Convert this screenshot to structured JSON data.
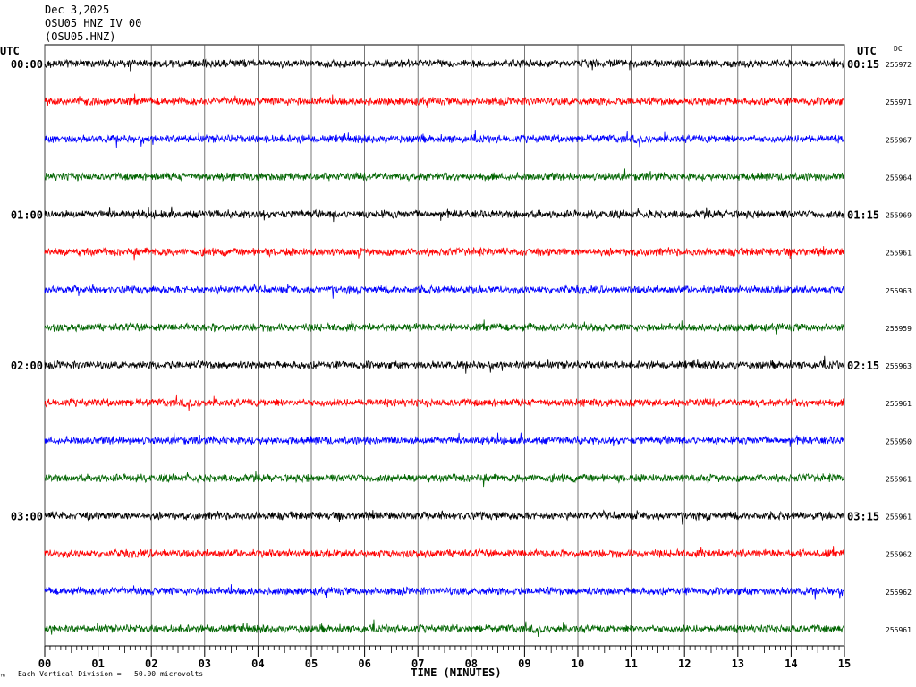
{
  "header": {
    "date": "Dec 3,2025",
    "station": "OSU05 HNZ IV 00",
    "channel": "(OSU05.HNZ)"
  },
  "axes": {
    "left_title": "UTC",
    "right_title": "UTC",
    "dc_title": "DC",
    "x_title": "TIME (MINUTES)"
  },
  "footer": {
    "mark": "™",
    "scale_note": "Each Vertical Division =   50.00 microvolts"
  },
  "chart_data": {
    "type": "line",
    "description_free": true,
    "x_range_minutes": [
      0,
      15
    ],
    "x_ticks": [
      "00",
      "01",
      "02",
      "03",
      "04",
      "05",
      "06",
      "07",
      "08",
      "09",
      "10",
      "11",
      "12",
      "13",
      "14",
      "15"
    ],
    "grid": "vertical-minute-lines",
    "trace_colors": [
      "#000000",
      "#ff0000",
      "#0000ff",
      "#006400"
    ],
    "left_time_labels": [
      "00:00",
      "",
      "",
      "",
      "01:00",
      "",
      "",
      "",
      "02:00",
      "",
      "",
      "",
      "03:00",
      "",
      "",
      ""
    ],
    "right_time_labels": [
      "00:15",
      "",
      "",
      "",
      "01:15",
      "",
      "",
      "",
      "02:15",
      "",
      "",
      "",
      "03:15",
      "",
      "",
      ""
    ],
    "dc_values": [
      "255972",
      "255971",
      "255967",
      "255964",
      "255969",
      "255961",
      "255963",
      "255959",
      "255963",
      "255961",
      "255950",
      "255961",
      "255961",
      "255962",
      "255962",
      "255961"
    ]
  }
}
